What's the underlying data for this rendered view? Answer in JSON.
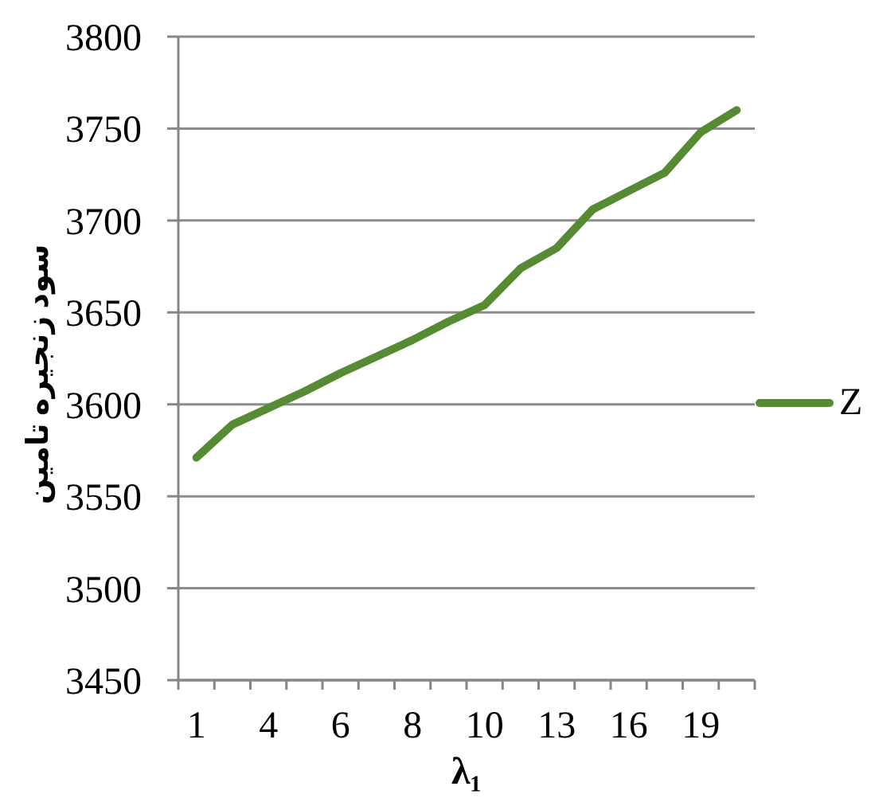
{
  "chart_data": {
    "type": "line",
    "xlabel": "λ₁",
    "ylabel": "سود زنجیره تامین",
    "categories": [
      "1",
      null,
      "4",
      null,
      "6",
      null,
      "8",
      null,
      "10",
      null,
      "13",
      null,
      "16",
      null,
      "19",
      null
    ],
    "series": [
      {
        "name": "Z",
        "color": "#568b33",
        "values": [
          3571,
          3589,
          3598,
          3607,
          3617,
          3626,
          3635,
          3645,
          3654,
          3674,
          3685,
          3706,
          3716,
          3726,
          3748,
          3760
        ]
      }
    ],
    "ylim": [
      3450,
      3800
    ],
    "yticks": [
      3450,
      3500,
      3550,
      3600,
      3650,
      3700,
      3750,
      3800
    ],
    "grid": "y",
    "legend": "right",
    "marker": "none",
    "line_style": "solid"
  }
}
